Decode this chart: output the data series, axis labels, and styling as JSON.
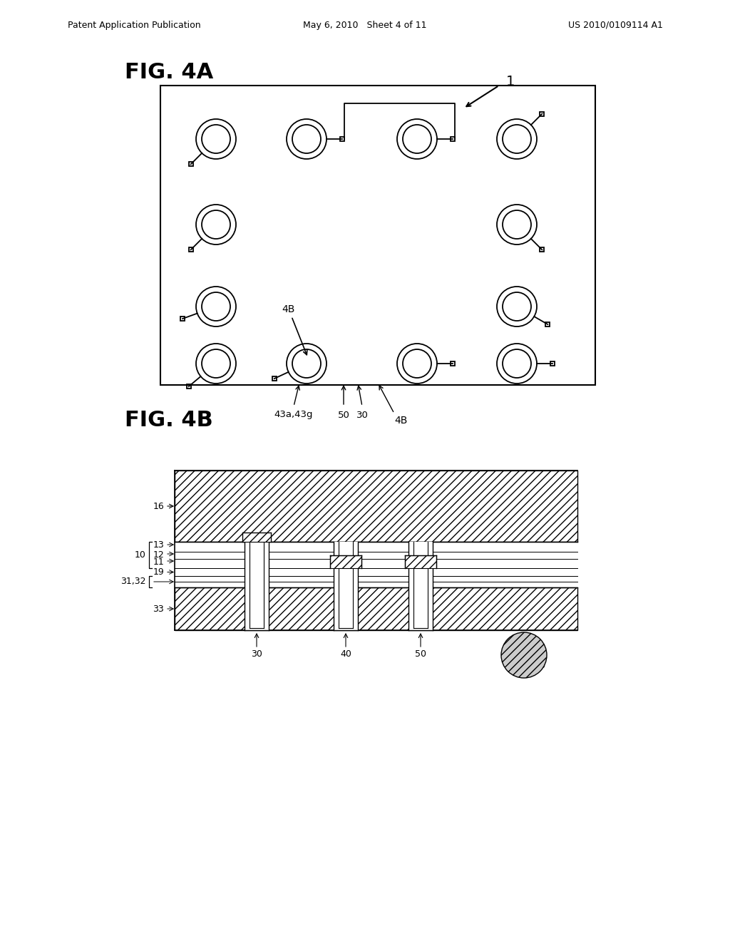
{
  "bg_color": "#ffffff",
  "text_color": "#000000",
  "header_left": "Patent Application Publication",
  "header_center": "May 6, 2010   Sheet 4 of 11",
  "header_right": "US 2010/0109114 A1",
  "fig4a_label": "FIG. 4A",
  "fig4b_label": "FIG. 4B"
}
